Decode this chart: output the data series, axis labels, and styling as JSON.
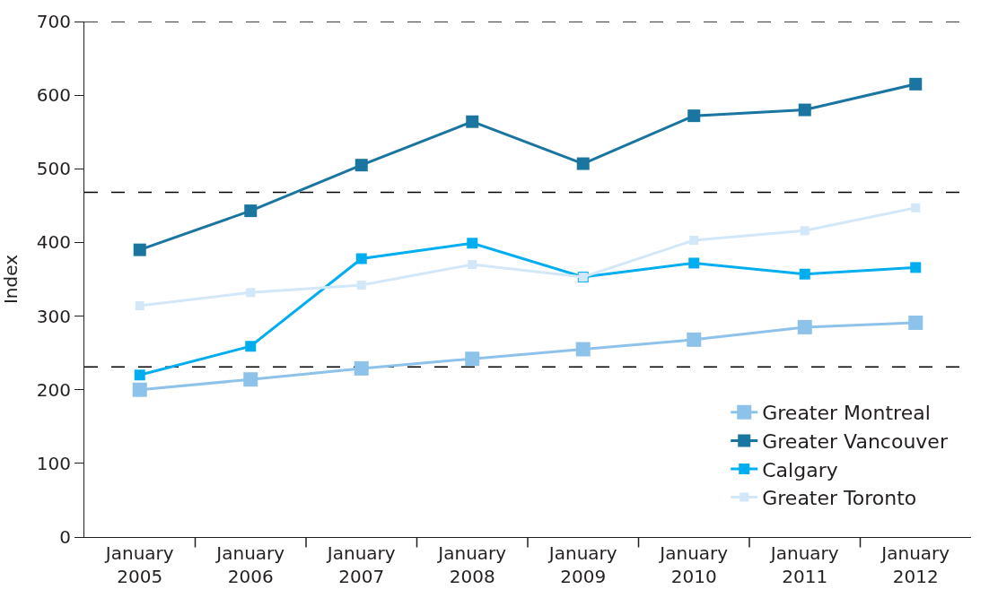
{
  "chart_data": {
    "type": "line",
    "ylabel": "Index",
    "categories": [
      "January\n2005",
      "January\n2006",
      "January\n2007",
      "January\n2008",
      "January\n2009",
      "January\n2010",
      "January\n2011",
      "January\n2012"
    ],
    "series": [
      {
        "name": "Greater Montreal",
        "color": "#8dc3ea",
        "values": [
          200,
          214,
          229,
          242,
          255,
          268,
          285,
          291
        ]
      },
      {
        "name": "Greater Vancouver",
        "color": "#1a75a0",
        "values": [
          390,
          443,
          505,
          564,
          507,
          572,
          580,
          615
        ]
      },
      {
        "name": "Calgary",
        "color": "#00aeef",
        "values": [
          220,
          259,
          378,
          399,
          353,
          372,
          357,
          366
        ]
      },
      {
        "name": "Greater Toronto",
        "color": "#d2e7f7",
        "values": [
          314,
          332,
          342,
          370,
          353,
          403,
          416,
          447
        ]
      }
    ],
    "ylim": [
      0,
      700
    ],
    "yticks": [
      0,
      100,
      200,
      300,
      400,
      500,
      600,
      700
    ],
    "ref_lines": [
      {
        "axis": "y",
        "value": 700,
        "color": "#000000",
        "line_style": "dashed"
      },
      {
        "axis": "y",
        "value": 468,
        "color": "#000000",
        "line_style": "dashed"
      },
      {
        "axis": "y",
        "value": 231,
        "color": "#000000",
        "line_style": "dashed"
      }
    ],
    "legend": "bottom right",
    "marker": "square",
    "line_style": "solid",
    "grid": false
  }
}
